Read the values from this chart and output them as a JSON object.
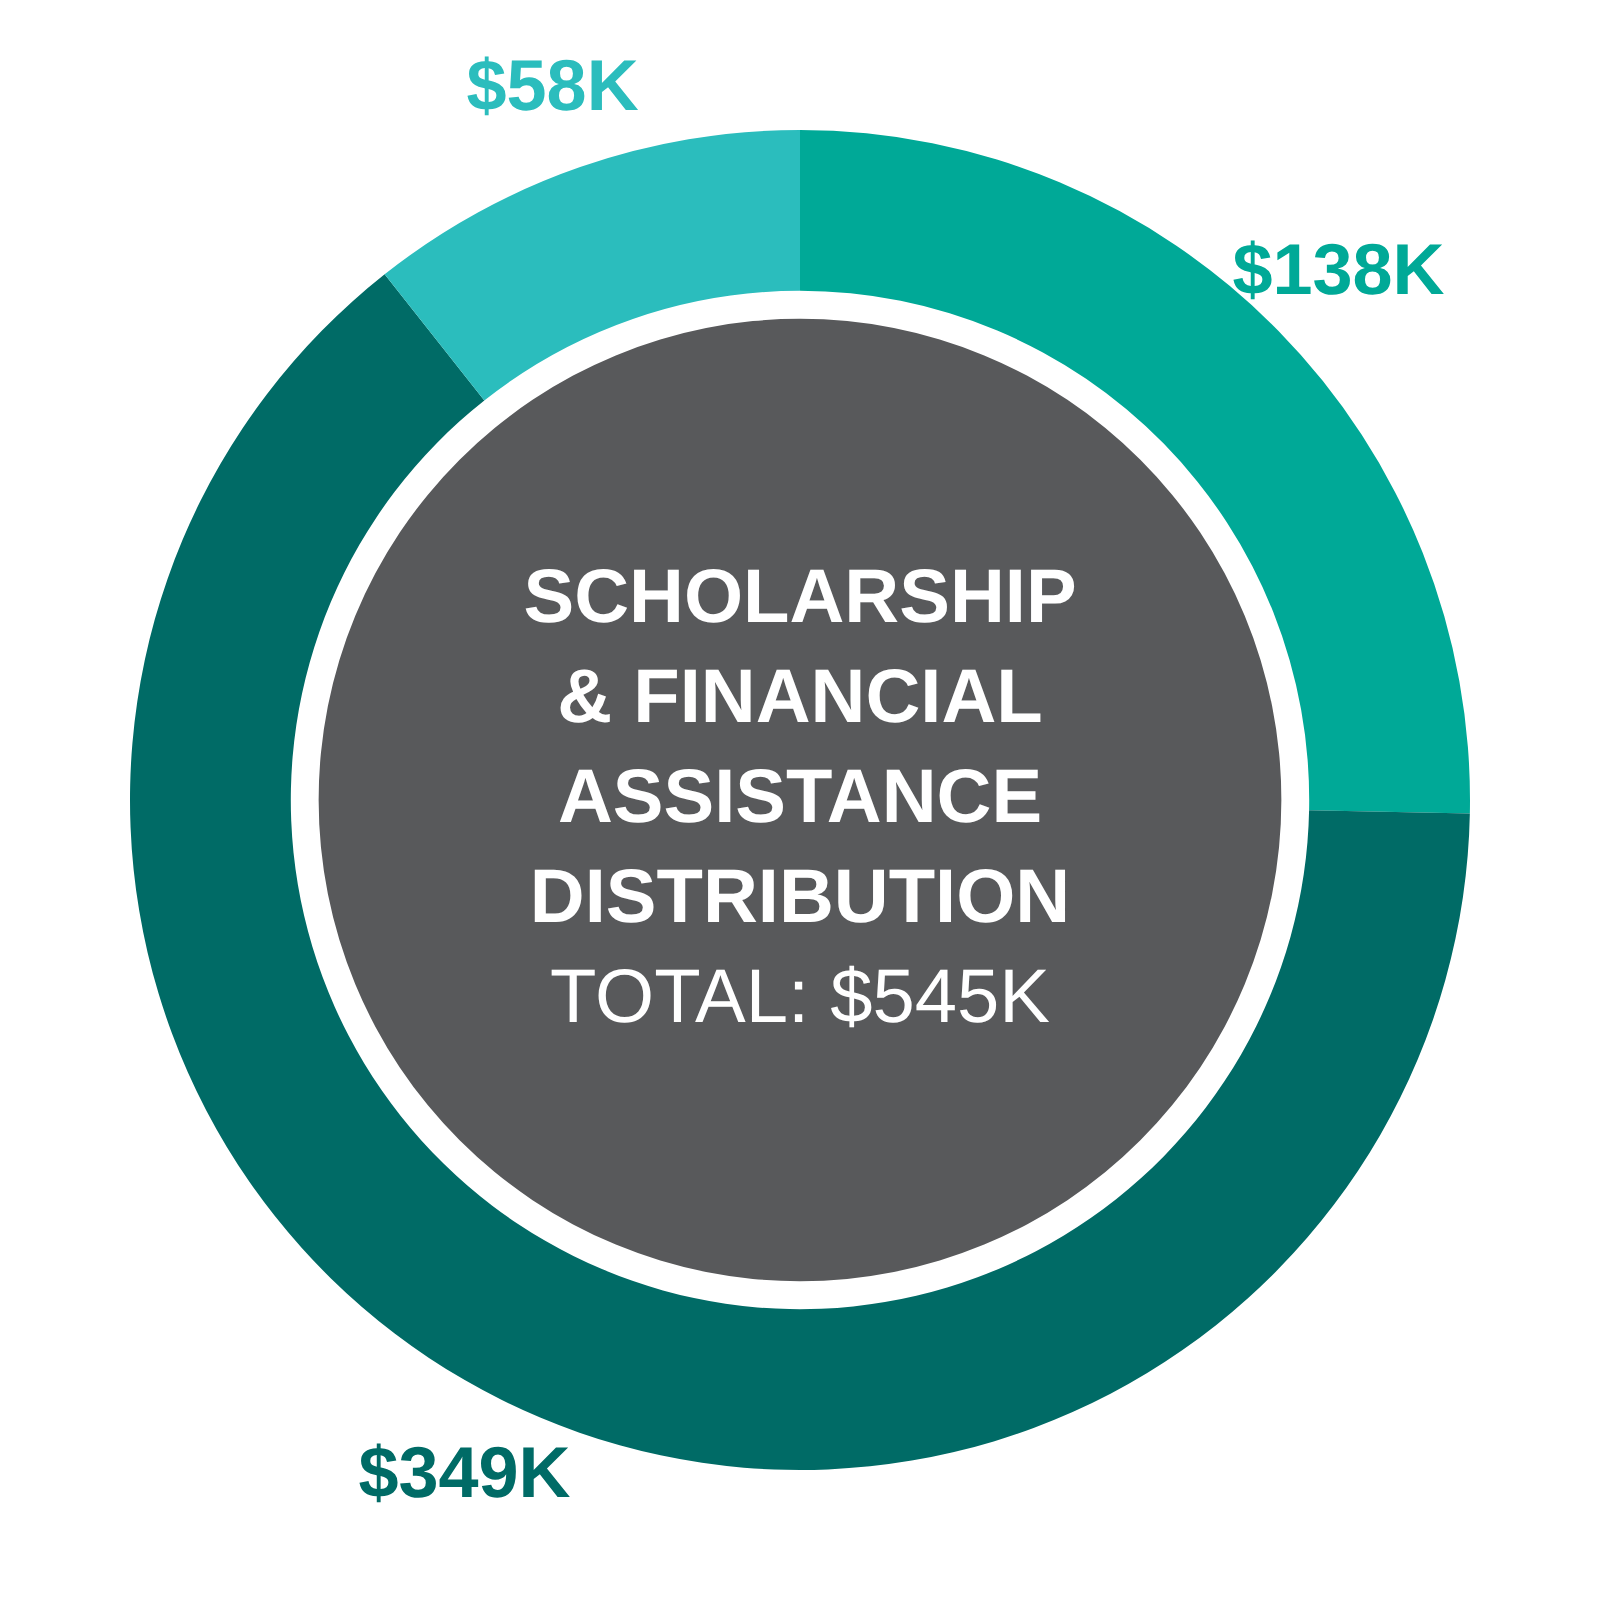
{
  "chart_data": {
    "type": "donut",
    "title": "SCHOLARSHIP & FINANCIAL ASSISTANCE DISTRIBUTION",
    "subtitle": "TOTAL: $545K",
    "categories": [
      null,
      null,
      null
    ],
    "values": [
      138,
      349,
      58
    ],
    "colors": [
      "#00a997",
      "#006b66",
      "#2bbdbd"
    ],
    "value_labels": [
      "$138K",
      "$349K",
      "$58K"
    ]
  }
}
